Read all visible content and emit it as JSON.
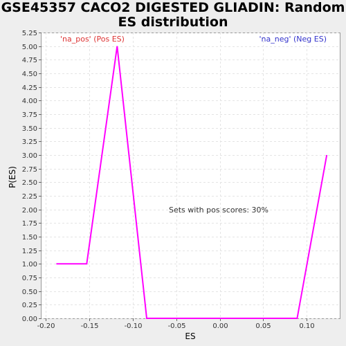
{
  "title_line1": "GSE45357 CACO2 DIGESTED GLIADIN: Random",
  "title_line2": "ES distribution",
  "chart_data": {
    "type": "line",
    "xlabel": "ES",
    "ylabel": "P(ES)",
    "xlim": [
      -0.205,
      0.138
    ],
    "ylim": [
      0,
      5.25
    ],
    "x_ticks": [
      "-0.20",
      "-0.15",
      "-0.10",
      "-0.05",
      "0.00",
      "0.05",
      "0.10"
    ],
    "x_tick_values": [
      -0.2,
      -0.15,
      -0.1,
      -0.05,
      0.0,
      0.05,
      0.1
    ],
    "y_ticks": [
      "0.00",
      "0.25",
      "0.50",
      "0.75",
      "1.00",
      "1.25",
      "1.50",
      "1.75",
      "2.00",
      "2.25",
      "2.50",
      "2.75",
      "3.00",
      "3.25",
      "3.50",
      "3.75",
      "4.00",
      "4.25",
      "4.50",
      "4.75",
      "5.00",
      "5.25"
    ],
    "y_tick_values": [
      0,
      0.25,
      0.5,
      0.75,
      1,
      1.25,
      1.5,
      1.75,
      2,
      2.25,
      2.5,
      2.75,
      3,
      3.25,
      3.5,
      3.75,
      4,
      4.25,
      4.5,
      4.75,
      5,
      5.25
    ],
    "grid": true,
    "series": [
      {
        "color": "#ff00ff",
        "x": [
          -0.188,
          -0.153,
          -0.118,
          -0.084,
          0.089,
          0.123
        ],
        "y": [
          1.0,
          1.0,
          5.0,
          0.0,
          0.0,
          3.0
        ]
      }
    ],
    "annotations": {
      "pos_label": "'na_pos' (Pos ES)",
      "pos_color": "#dd3333",
      "neg_label": "'na_neg' (Neg ES)",
      "neg_color": "#3333cc",
      "center_text": "Sets with pos scores: 30%"
    }
  }
}
